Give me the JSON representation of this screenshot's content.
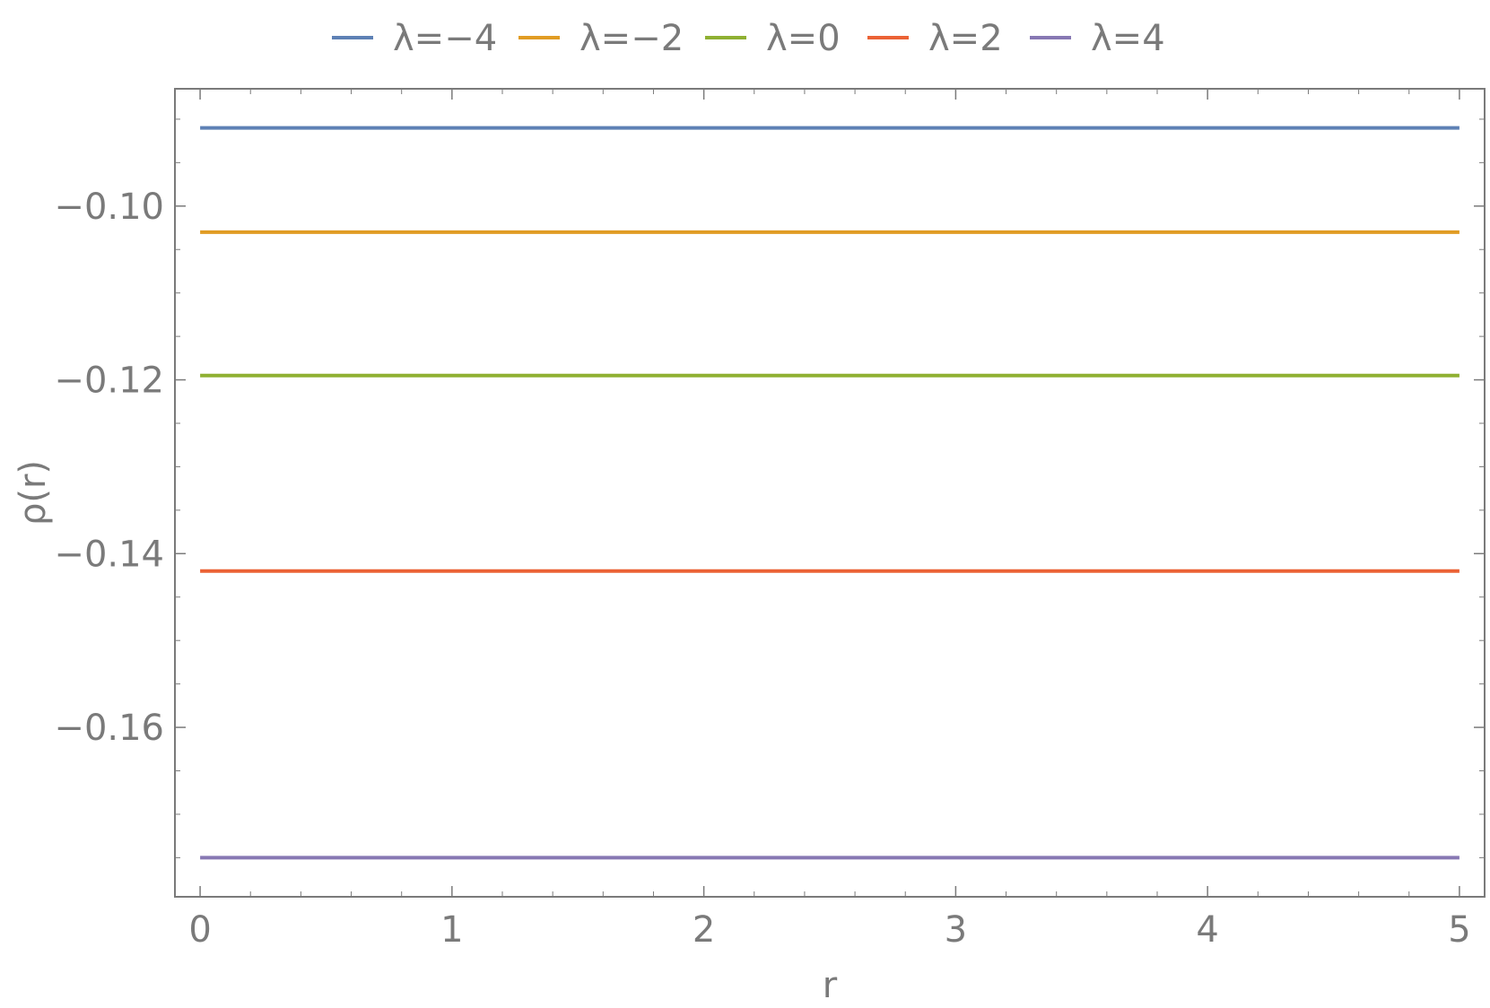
{
  "chart_data": {
    "type": "line",
    "title": "",
    "xlabel": "r",
    "ylabel": "ρ(r)",
    "xlim": [
      -0.1,
      5.1
    ],
    "ylim": [
      -0.1795,
      -0.0865
    ],
    "x_ticks": [
      0,
      1,
      2,
      3,
      4,
      5
    ],
    "x_tick_labels": [
      "0",
      "1",
      "2",
      "3",
      "4",
      "5"
    ],
    "y_ticks": [
      -0.16,
      -0.14,
      -0.12,
      -0.1
    ],
    "y_tick_labels": [
      "−0.16",
      "−0.14",
      "−0.12",
      "−0.10"
    ],
    "grid": false,
    "legend_position": "top",
    "x": [
      0,
      5
    ],
    "series": [
      {
        "name": "λ=−4",
        "color": "#5e81b5",
        "values": [
          -0.091,
          -0.091
        ]
      },
      {
        "name": "λ=−2",
        "color": "#e19c24",
        "values": [
          -0.103,
          -0.103
        ]
      },
      {
        "name": "λ=0",
        "color": "#8fb032",
        "values": [
          -0.1195,
          -0.1195
        ]
      },
      {
        "name": "λ=2",
        "color": "#eb6235",
        "values": [
          -0.142,
          -0.142
        ]
      },
      {
        "name": "λ=4",
        "color": "#8778b3",
        "values": [
          -0.175,
          -0.175
        ]
      }
    ]
  }
}
